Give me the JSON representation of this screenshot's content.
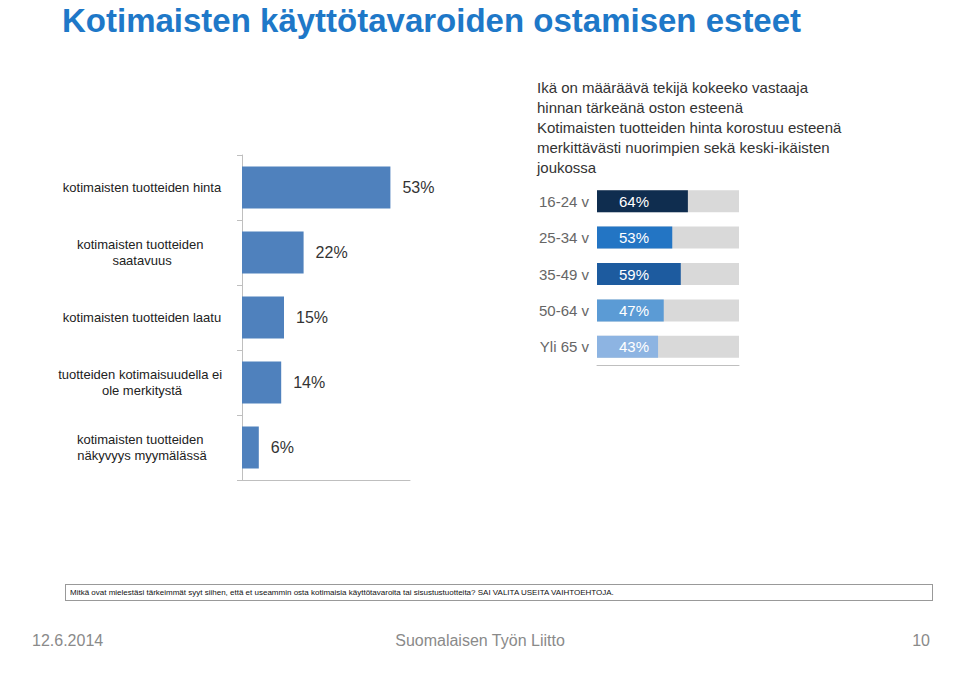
{
  "title": "Kotimaisten käyttötavaroiden ostamisen esteet",
  "chart_data": [
    {
      "type": "bar",
      "orientation": "horizontal",
      "categories": [
        "kotimaisten tuotteiden hinta",
        "kotimaisten tuotteiden saatavuus",
        "kotimaisten tuotteiden laatu",
        "tuotteiden kotimaisuudella ei ole merkitystä",
        "kotimaisten tuotteiden näkyvyys myymälässä"
      ],
      "values": [
        53,
        22,
        15,
        14,
        6
      ],
      "value_labels": [
        "53%",
        "22%",
        "15%",
        "14%",
        "6%"
      ],
      "color": "#4f81bd",
      "xlim": [
        0,
        60
      ],
      "xticks": [],
      "grid": false,
      "data_labels": true,
      "tick_labels": "y"
    },
    {
      "type": "bar",
      "orientation": "horizontal",
      "annotations": [
        "Ikä on määräävä tekijä kokeeko vastaaja hinnan tärkeänä oston esteenä",
        "Kotimaisten tuotteiden hinta korostuu esteenä merkittävästi nuorimpien sekä keski-ikäisten joukossa"
      ],
      "categories": [
        "16-24 v",
        "25-34 v",
        "35-49 v",
        "50-64 v",
        "Yli 65 v"
      ],
      "values": [
        64,
        53,
        59,
        47,
        43
      ],
      "value_labels": [
        "64%",
        "53%",
        "59%",
        "47%",
        "43%"
      ],
      "colors": [
        "#0f2d4f",
        "#2375c4",
        "#1d5b9f",
        "#5b9bd5",
        "#8db4e2"
      ],
      "xlim": [
        0,
        100
      ],
      "xticks": [],
      "grid": false,
      "data_labels": true,
      "tick_labels": "y"
    }
  ],
  "question": "Mitkä ovat mielestäsi tärkeimmät syyt siihen, että et useammin osta kotimaisia käyttötavaroita tai sisustustuotteita? SAI VALITA USEITA VAIHTOEHTOJA.",
  "footer": {
    "date": "12.6.2014",
    "organization": "Suomalaisen Työn Liitto",
    "page": "10"
  }
}
